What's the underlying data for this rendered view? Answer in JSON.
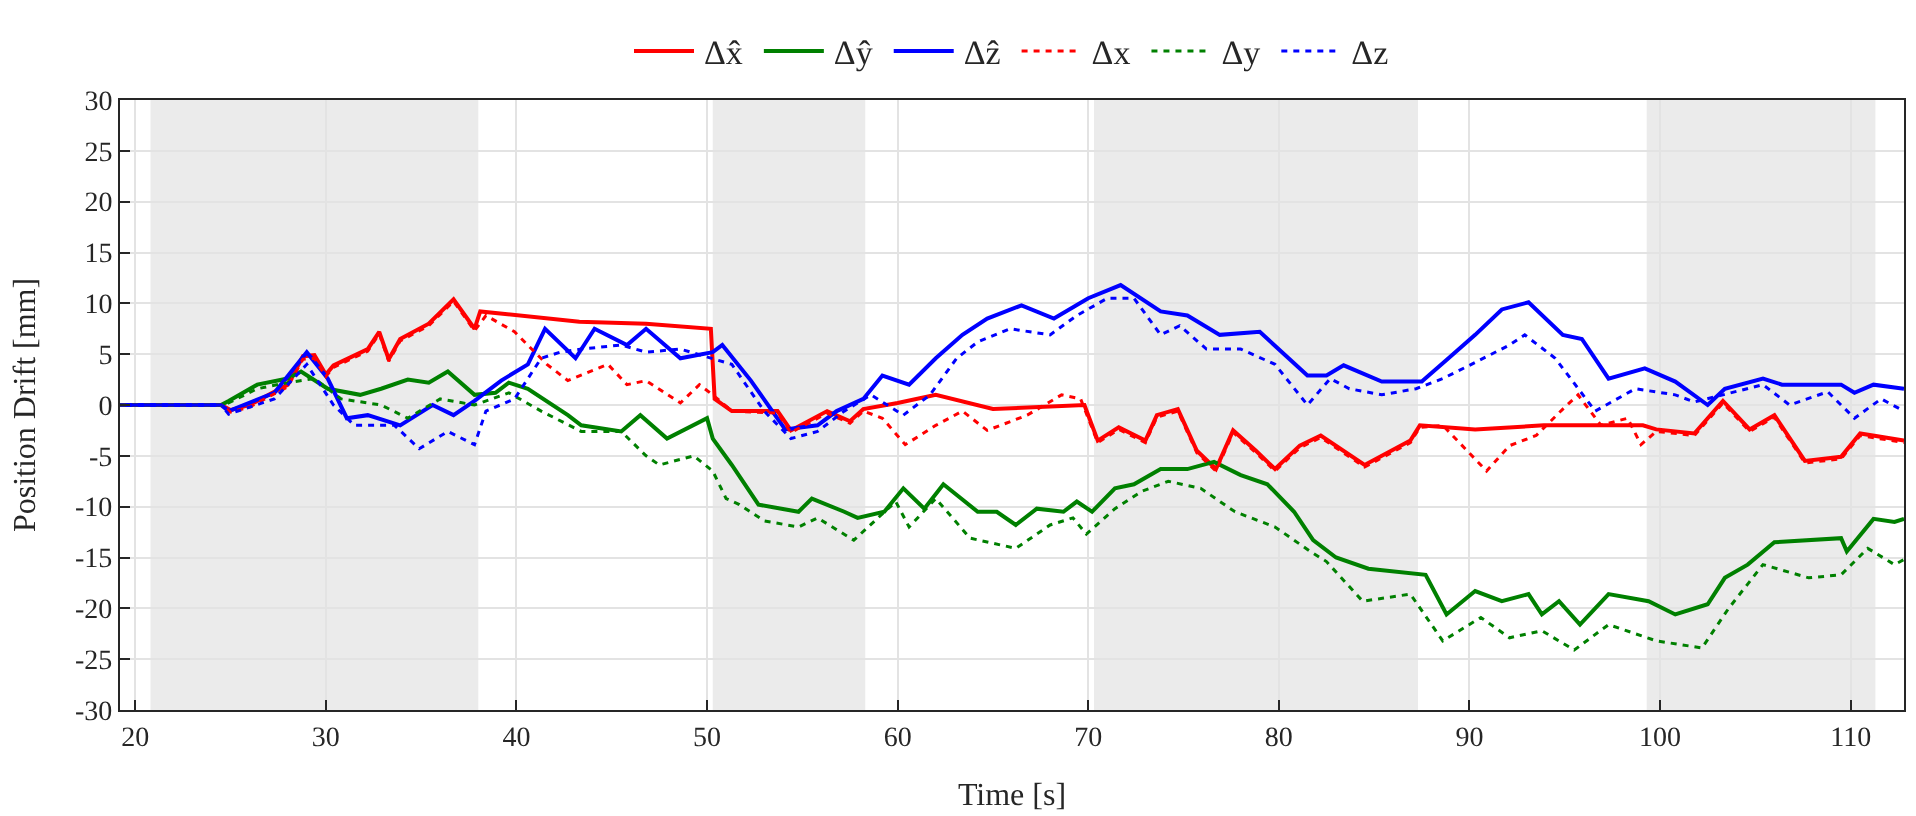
{
  "chart_data": {
    "type": "line",
    "xlabel": "Time [s]",
    "ylabel": "Position Drift [mm]",
    "xlim": [
      19.2,
      112.8
    ],
    "ylim": [
      -30,
      30
    ],
    "xticks": [
      20,
      30,
      40,
      50,
      60,
      70,
      80,
      90,
      100,
      110
    ],
    "yticks": [
      -30,
      -25,
      -20,
      -15,
      -10,
      -5,
      0,
      5,
      10,
      15,
      20,
      25,
      30
    ],
    "grid": true,
    "legend": "top",
    "bands": [
      {
        "axis": "x",
        "from": 20.8,
        "to": 38.0,
        "color": "#ebebeb"
      },
      {
        "axis": "x",
        "from": 50.3,
        "to": 58.3,
        "color": "#ebebeb"
      },
      {
        "axis": "x",
        "from": 70.3,
        "to": 87.3,
        "color": "#ebebeb"
      },
      {
        "axis": "x",
        "from": 99.3,
        "to": 111.3,
        "color": "#ebebeb"
      }
    ],
    "series": [
      {
        "name": "Δx̂",
        "color": "#ff0000",
        "line_style": "solid",
        "x": [
          19.2,
          24.5,
          25,
          26,
          27,
          28,
          28.8,
          29.4,
          30,
          30.4,
          32.2,
          32.8,
          33.3,
          33.9,
          35.4,
          36.7,
          37.8,
          38.1,
          43.3,
          46.8,
          50.2,
          50.4,
          51.3,
          53.7,
          54.4,
          56.3,
          57.5,
          58.2,
          60,
          62,
          65,
          69.8,
          70.5,
          71.6,
          73,
          73.6,
          74.7,
          75.7,
          76.7,
          77.6,
          78.8,
          79.8,
          81.1,
          82.2,
          84.5,
          86.9,
          87.4,
          90.3,
          93.9,
          99.1,
          99.8,
          101.8,
          103.3,
          104.7,
          106,
          107.6,
          109.5,
          110.5,
          112.8
        ],
        "values": [
          0,
          0,
          -0.5,
          0,
          1,
          2,
          4.8,
          4.9,
          3,
          3.9,
          5.5,
          7.2,
          4.5,
          6.5,
          8,
          10.4,
          7.5,
          9.2,
          8.2,
          8,
          7.5,
          0.6,
          -0.6,
          -0.6,
          -2.5,
          -0.6,
          -1.6,
          -0.4,
          0.2,
          1,
          -0.4,
          0,
          -3.5,
          -2.2,
          -3.5,
          -1,
          -0.4,
          -4.5,
          -6.3,
          -2.5,
          -4.5,
          -6.3,
          -4,
          -3,
          -5.9,
          -3.5,
          -2,
          -2.4,
          -2,
          -2,
          -2.4,
          -2.8,
          0.4,
          -2.4,
          -1,
          -5.5,
          -5.1,
          -2.8,
          -3.5
        ]
      },
      {
        "name": "Δŷ",
        "color": "#008000",
        "line_style": "solid",
        "x": [
          19.2,
          24.5,
          24.9,
          26.4,
          28,
          28.7,
          30.1,
          31.8,
          32.9,
          34.3,
          35.4,
          36.4,
          37.8,
          38.9,
          39.6,
          40.6,
          42.7,
          43.4,
          45.5,
          46.5,
          47.9,
          50,
          50.3,
          51.3,
          52.7,
          54.8,
          55.5,
          57.2,
          57.9,
          59.3,
          60.3,
          61.4,
          62.4,
          64.2,
          65.2,
          66.2,
          67.3,
          68.7,
          69.4,
          70.2,
          71.4,
          72.4,
          73.8,
          75.2,
          76.6,
          78,
          79.4,
          80.8,
          81.8,
          83,
          84.7,
          87.7,
          88.8,
          90.3,
          91.7,
          93.1,
          93.8,
          94.7,
          95.8,
          97.3,
          99.4,
          100.8,
          102.5,
          103.4,
          104.6,
          106,
          109.5,
          109.8,
          111.2,
          112.3,
          112.8
        ],
        "values": [
          0,
          0,
          0.4,
          2,
          2.6,
          3.3,
          1.6,
          1,
          1.6,
          2.5,
          2.2,
          3.3,
          1,
          1.2,
          2.2,
          1.6,
          -1,
          -2,
          -2.6,
          -1,
          -3.3,
          -1.3,
          -3.3,
          -5.9,
          -9.8,
          -10.5,
          -9.2,
          -10.5,
          -11.1,
          -10.5,
          -8.2,
          -10.2,
          -7.8,
          -10.5,
          -10.5,
          -11.8,
          -10.2,
          -10.5,
          -9.5,
          -10.5,
          -8.2,
          -7.8,
          -6.3,
          -6.3,
          -5.6,
          -6.9,
          -7.8,
          -10.5,
          -13.3,
          -15,
          -16.1,
          -16.7,
          -20.6,
          -18.3,
          -19.3,
          -18.6,
          -20.6,
          -19.3,
          -21.6,
          -18.6,
          -19.3,
          -20.6,
          -19.6,
          -17,
          -15.7,
          -13.5,
          -13.1,
          -14.4,
          -11.2,
          -11.5,
          -11.2
        ]
      },
      {
        "name": "Δẑ",
        "color": "#0000ff",
        "line_style": "solid",
        "x": [
          19.2,
          24.5,
          24.9,
          27.3,
          29,
          30.1,
          31.1,
          32.2,
          33.9,
          35.6,
          36.7,
          37.8,
          39.2,
          40.6,
          41.5,
          43.1,
          44.1,
          45.8,
          46.8,
          48.6,
          50.3,
          50.8,
          52.3,
          54.1,
          55.8,
          56.8,
          58.2,
          59.2,
          60.6,
          62,
          63.4,
          64.7,
          66.5,
          68.2,
          70,
          71.7,
          73.8,
          75.2,
          76.9,
          79,
          81.5,
          82.5,
          83.4,
          85.4,
          87.5,
          88.9,
          90.3,
          91.7,
          93.1,
          94.9,
          95.9,
          97.3,
          99.2,
          100.8,
          102.5,
          103.4,
          105.4,
          106.4,
          109.5,
          110.2,
          111.2,
          112.8
        ],
        "values": [
          0,
          0,
          -0.6,
          1.2,
          5.2,
          2.6,
          -1.3,
          -1,
          -2,
          0,
          -1,
          0.4,
          2.4,
          4,
          7.5,
          4.6,
          7.5,
          5.9,
          7.5,
          4.6,
          5.2,
          5.9,
          2.4,
          -2.4,
          -2,
          -0.6,
          0.6,
          2.9,
          2,
          4.6,
          6.9,
          8.5,
          9.8,
          8.5,
          10.5,
          11.8,
          9.2,
          8.8,
          6.9,
          7.2,
          2.9,
          2.9,
          3.9,
          2.3,
          2.3,
          4.6,
          6.9,
          9.4,
          10.1,
          6.9,
          6.5,
          2.6,
          3.6,
          2.3,
          0,
          1.6,
          2.6,
          2,
          2,
          1.2,
          2,
          1.6
        ]
      },
      {
        "name": "Δx",
        "color": "#ff0000",
        "line_style": "dotted",
        "x": [
          19.2,
          24.5,
          25,
          26,
          27,
          28,
          28.8,
          29.4,
          30,
          30.4,
          32.2,
          32.8,
          33.3,
          33.9,
          35.4,
          36.7,
          37.8,
          38.4,
          39.9,
          41.6,
          42.7,
          44.8,
          45.8,
          46.8,
          48.6,
          49.6,
          50.3,
          51.3,
          53.7,
          54.4,
          56.3,
          57.5,
          58.2,
          59.2,
          60.4,
          62,
          63.4,
          64.7,
          66.8,
          68.6,
          69.6,
          70.5,
          71.6,
          73,
          73.6,
          74.7,
          75.7,
          76.7,
          77.6,
          78.8,
          79.8,
          81.1,
          82.2,
          84.5,
          86.9,
          87.4,
          88.6,
          90.9,
          92.1,
          93.5,
          94.9,
          95.7,
          96.9,
          98.3,
          99,
          99.8,
          101.8,
          103.3,
          104.7,
          106,
          107.6,
          109.5,
          110.5,
          112.8
        ],
        "values": [
          0,
          0,
          -0.7,
          -0.2,
          0.8,
          1.8,
          4.5,
          4.6,
          2.8,
          3.7,
          5.3,
          7,
          4.3,
          6.3,
          7.8,
          10.2,
          7.3,
          8.8,
          7.2,
          4,
          2.4,
          4,
          2,
          2.4,
          0.2,
          2,
          1,
          -0.6,
          -0.8,
          -2.7,
          -0.8,
          -1.8,
          -0.6,
          -1.3,
          -3.9,
          -2,
          -0.6,
          -2.5,
          -1,
          1,
          0.6,
          -3.7,
          -2.4,
          -3.7,
          -1.2,
          -0.6,
          -4.7,
          -6.5,
          -2.7,
          -4.7,
          -6.5,
          -4.2,
          -3.2,
          -6.1,
          -3.7,
          -2.2,
          -2,
          -6.5,
          -4,
          -3,
          -0.4,
          1,
          -2,
          -1.3,
          -3.9,
          -2.6,
          -3,
          0.2,
          -2.6,
          -1.2,
          -5.7,
          -5.3,
          -3,
          -3.7
        ]
      },
      {
        "name": "Δy",
        "color": "#008000",
        "line_style": "dotted",
        "x": [
          19.2,
          24.5,
          24.9,
          26.4,
          28,
          29.4,
          30.8,
          32.9,
          34.3,
          36,
          37.8,
          39.6,
          41.3,
          43.4,
          45.5,
          46.8,
          47.5,
          49.3,
          50.3,
          51,
          51.7,
          53,
          54.8,
          55.8,
          57.7,
          59.9,
          60.6,
          62,
          63.8,
          66.2,
          68,
          69.2,
          69.9,
          71.4,
          72.8,
          74.2,
          75.9,
          77.7,
          79.8,
          81.65,
          82.5,
          84.4,
          86.9,
          88.6,
          90.6,
          92.1,
          93.8,
          95.5,
          97.3,
          99.8,
          102.2,
          103.6,
          105.4,
          107.8,
          109.5,
          110.9,
          112.3,
          112.8
        ],
        "values": [
          0,
          0,
          0.2,
          1.6,
          2.2,
          2.6,
          0.6,
          0,
          -1.3,
          0.6,
          0,
          1.2,
          -0.6,
          -2.6,
          -2.6,
          -5,
          -5.9,
          -5,
          -6.5,
          -9.2,
          -9.8,
          -11.4,
          -12,
          -11.1,
          -13.3,
          -9.5,
          -12,
          -9.2,
          -13.1,
          -14.1,
          -11.8,
          -11.1,
          -12.7,
          -10.2,
          -8.5,
          -7.5,
          -8.2,
          -10.5,
          -12,
          -14.4,
          -15.4,
          -19.3,
          -18.6,
          -23.2,
          -20.9,
          -22.9,
          -22.2,
          -24.1,
          -21.6,
          -23.2,
          -23.9,
          -20,
          -15.7,
          -17,
          -16.7,
          -14.1,
          -15.7,
          -15.2
        ]
      },
      {
        "name": "Δz",
        "color": "#0000ff",
        "line_style": "dotted",
        "x": [
          19.2,
          24.5,
          24.9,
          27.3,
          29,
          30.4,
          31.5,
          33.6,
          34.9,
          36.4,
          37.8,
          38.4,
          39.9,
          41.3,
          42.3,
          43.4,
          45.5,
          46.8,
          48.6,
          51.3,
          53,
          54.4,
          55.8,
          57.2,
          58.6,
          60.3,
          61.7,
          63.1,
          64.2,
          65.9,
          68,
          69.4,
          71,
          72.4,
          73.8,
          74.8,
          76.2,
          78,
          79.8,
          81.5,
          82.7,
          83.7,
          85.4,
          87.2,
          88.6,
          90,
          92.1,
          92.9,
          94.5,
          96.6,
          98.7,
          100.8,
          101.8,
          103.3,
          105.4,
          106.8,
          108.8,
          110.2,
          111.6,
          112.8
        ],
        "values": [
          0,
          0,
          -0.9,
          0.6,
          4,
          0,
          -2,
          -2,
          -4.3,
          -2.6,
          -3.9,
          -0.6,
          0.6,
          4.6,
          5.2,
          5.5,
          5.9,
          5.2,
          5.5,
          4,
          -0.6,
          -3.3,
          -2.6,
          -0.6,
          1,
          -1,
          1,
          4.6,
          6.2,
          7.5,
          6.9,
          8.8,
          10.5,
          10.5,
          6.9,
          7.8,
          5.5,
          5.5,
          4,
          0,
          2.6,
          1.6,
          1,
          1.6,
          2.6,
          3.9,
          5.9,
          6.9,
          4.6,
          -0.6,
          1.6,
          1,
          0.3,
          1,
          2,
          0,
          1.3,
          -1.3,
          0.6,
          -0.6
        ]
      }
    ]
  }
}
